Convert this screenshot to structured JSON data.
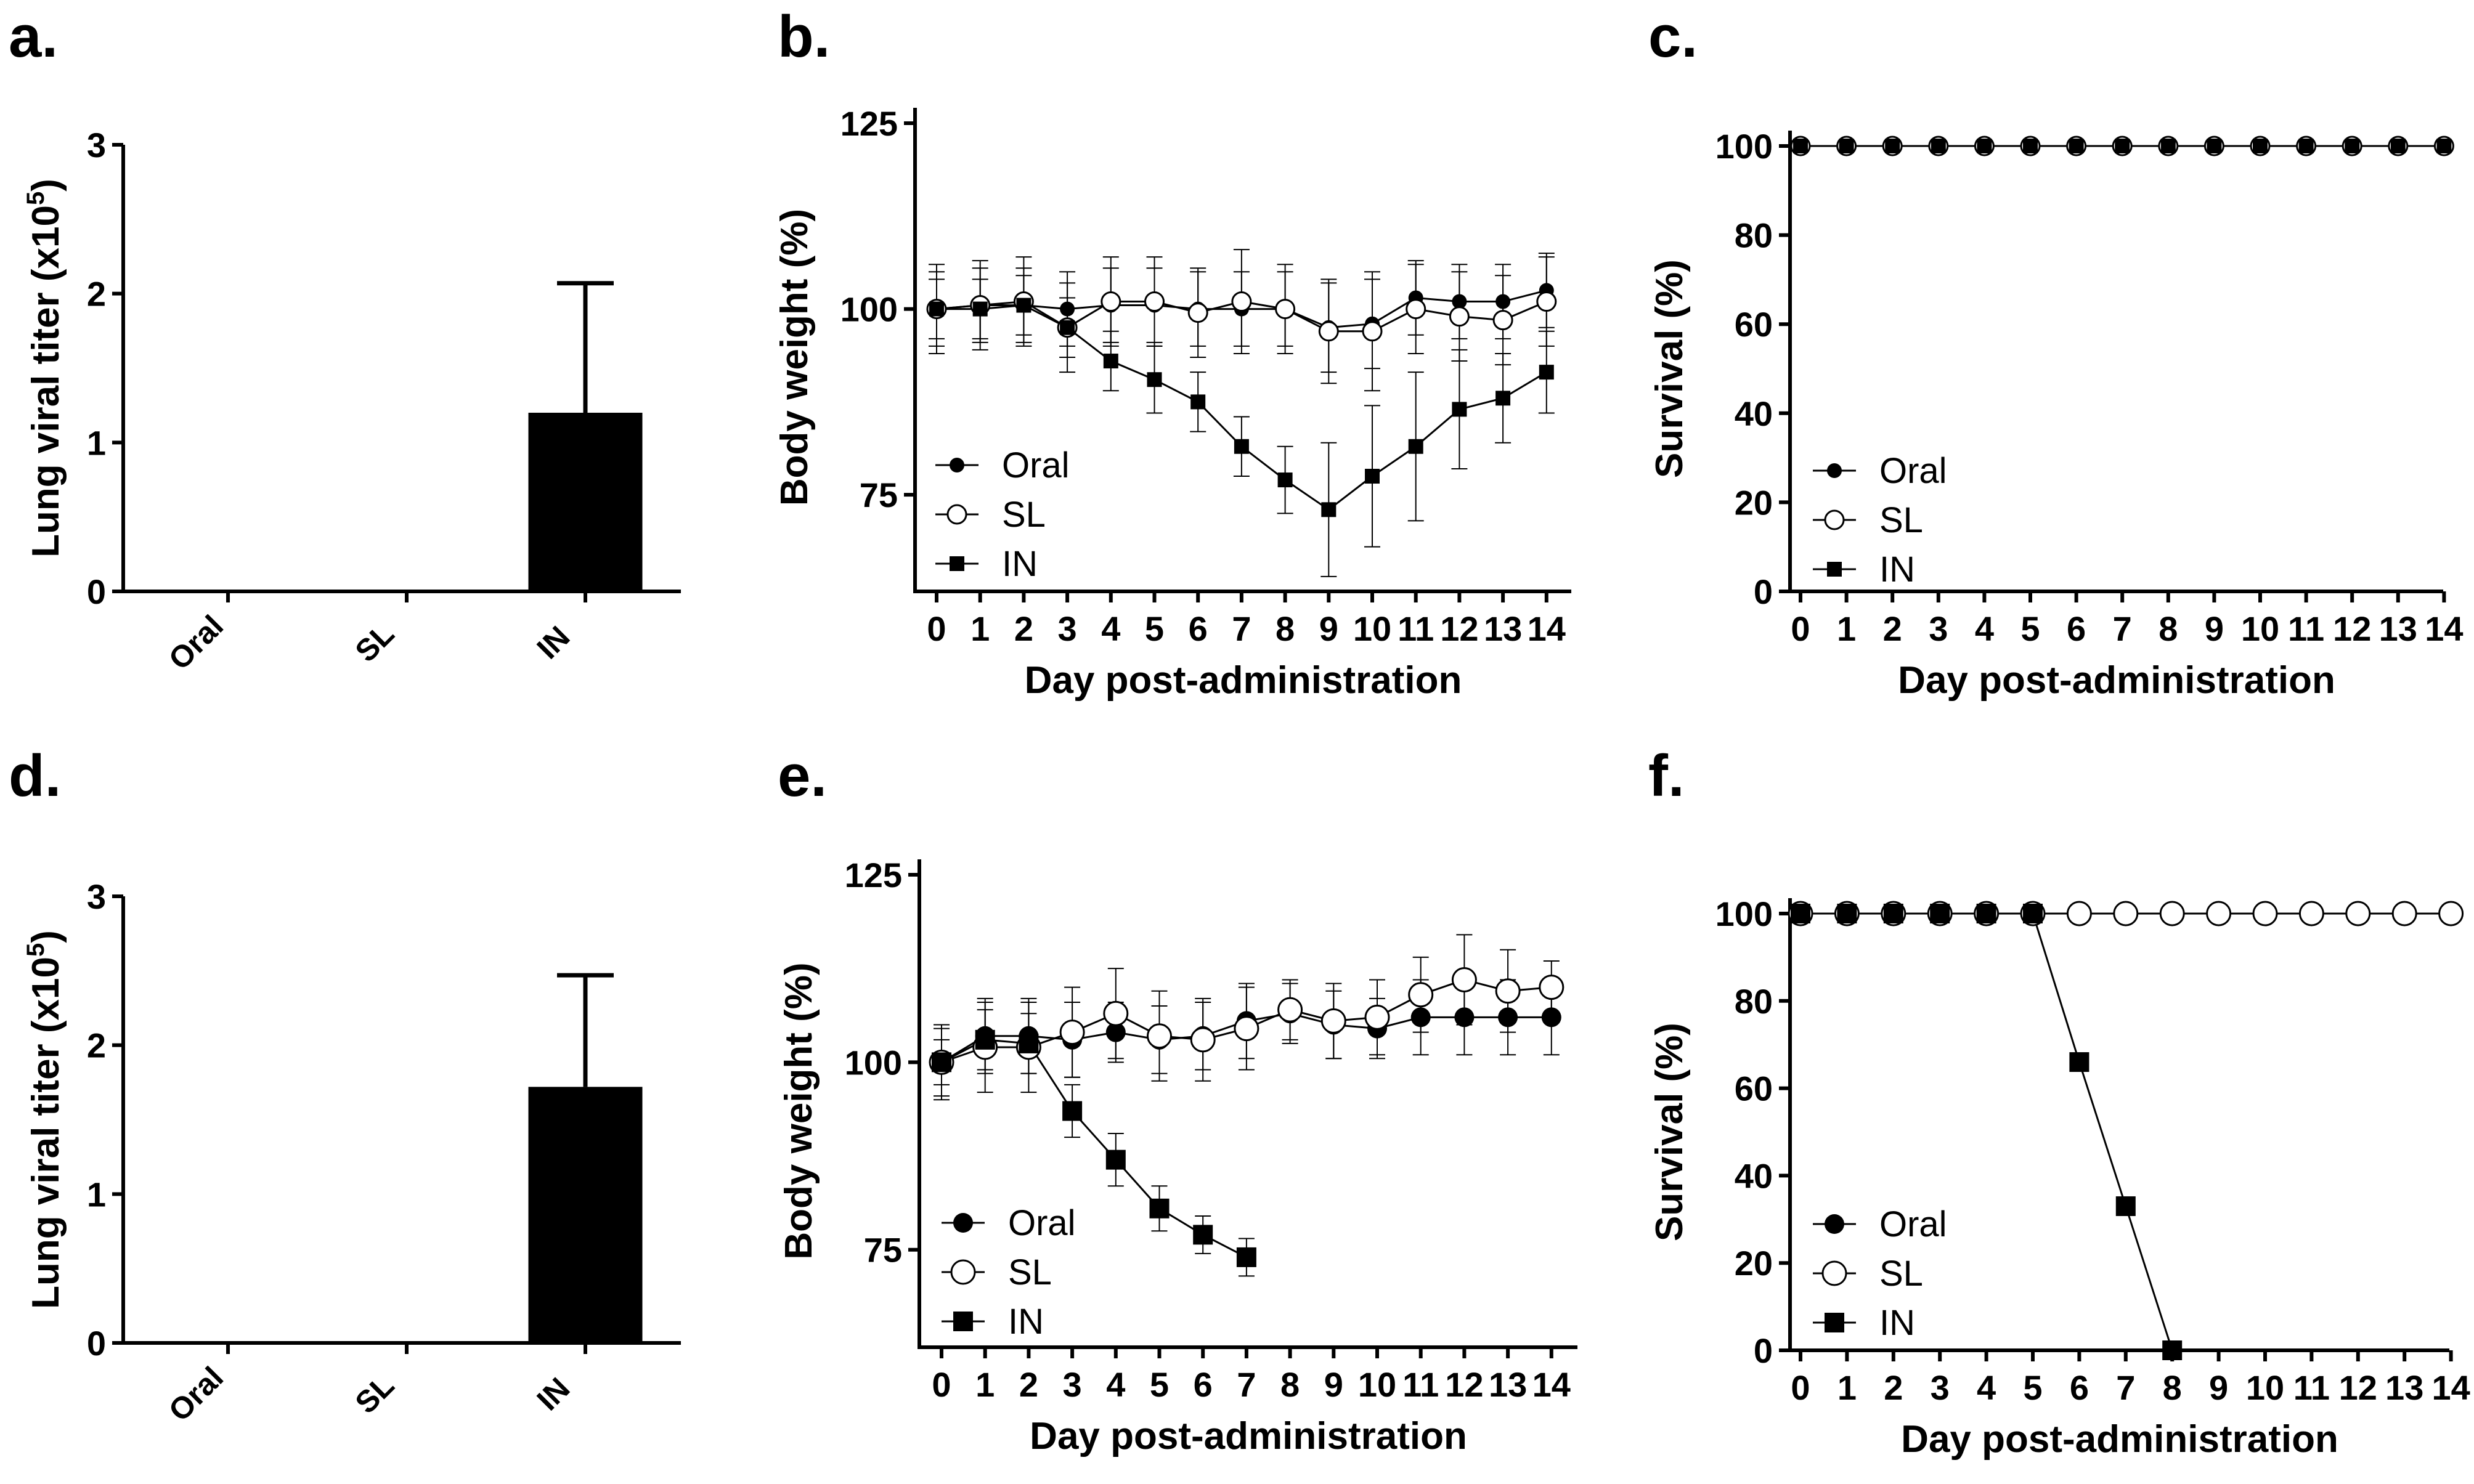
{
  "figure": {
    "panels": [
      "a.",
      "b.",
      "c.",
      "d.",
      "e.",
      "f."
    ]
  },
  "chart_data": [
    {
      "panel": "a.",
      "type": "bar",
      "title": "",
      "xlabel": "",
      "ylabel": "Lung viral titer (x10",
      "ylabel_sup": "5",
      "ylabel_end": ")",
      "categories": [
        "Oral",
        "SL",
        "IN"
      ],
      "values": [
        0,
        0,
        1.2
      ],
      "error": [
        0,
        0,
        0.87
      ],
      "ylim": [
        0,
        3
      ],
      "yticks": [
        "0",
        "1",
        "2",
        "3"
      ],
      "color": "#000000"
    },
    {
      "panel": "b.",
      "type": "line",
      "xlabel": "Day post-administration",
      "ylabel": "Body weight (%)",
      "x": [
        0,
        1,
        2,
        3,
        4,
        5,
        6,
        7,
        8,
        9,
        10,
        11,
        12,
        13,
        14
      ],
      "xticks": [
        "0",
        "1",
        "2",
        "3",
        "4",
        "5",
        "6",
        "7",
        "8",
        "9",
        "10",
        "11",
        "12",
        "13",
        "14"
      ],
      "ylim": [
        62,
        125
      ],
      "yticks": [
        "75",
        "100",
        "125"
      ],
      "legend": [
        "Oral",
        "SL",
        "IN"
      ],
      "series": [
        {
          "name": "Oral",
          "marker": "dot",
          "values": [
            100,
            100.5,
            100.5,
            100,
            100.5,
            100.5,
            100,
            100,
            100,
            97.5,
            98,
            101.5,
            101,
            101,
            102.5
          ],
          "err": [
            5,
            5,
            5,
            5,
            5,
            5,
            5,
            5,
            5,
            6,
            6,
            5,
            5,
            5,
            5
          ]
        },
        {
          "name": "SL",
          "marker": "open-circle",
          "values": [
            100,
            100.5,
            101,
            97.5,
            101,
            101,
            99.5,
            101,
            100,
            97,
            97,
            100,
            99,
            98.5,
            101
          ],
          "err": [
            6,
            6,
            6,
            6,
            6,
            6,
            6,
            7,
            6,
            7,
            8,
            6,
            6,
            6,
            6
          ]
        },
        {
          "name": "IN",
          "marker": "square",
          "values": [
            100,
            100,
            100.5,
            97.5,
            93,
            90.5,
            87.5,
            81.5,
            77,
            73,
            77.5,
            81.5,
            86.5,
            88,
            91.5
          ],
          "err": [
            4,
            4,
            4,
            4,
            4,
            4.5,
            4,
            4,
            4.5,
            9,
            9.5,
            10,
            8,
            6,
            5.5
          ]
        }
      ]
    },
    {
      "panel": "c.",
      "type": "line",
      "xlabel": "Day post-administration",
      "ylabel": "Survival (%)",
      "x": [
        0,
        1,
        2,
        3,
        4,
        5,
        6,
        7,
        8,
        9,
        10,
        11,
        12,
        13,
        14
      ],
      "xticks": [
        "0",
        "1",
        "2",
        "3",
        "4",
        "5",
        "6",
        "7",
        "8",
        "9",
        "10",
        "11",
        "12",
        "13",
        "14"
      ],
      "ylim": [
        0,
        100
      ],
      "yticks": [
        "0",
        "20",
        "40",
        "60",
        "80",
        "100"
      ],
      "legend": [
        "Oral",
        "SL",
        "IN"
      ],
      "series": [
        {
          "name": "Oral",
          "marker": "dot",
          "values": [
            100,
            100,
            100,
            100,
            100,
            100,
            100,
            100,
            100,
            100,
            100,
            100,
            100,
            100,
            100
          ]
        },
        {
          "name": "SL",
          "marker": "open-circle",
          "values": [
            100,
            100,
            100,
            100,
            100,
            100,
            100,
            100,
            100,
            100,
            100,
            100,
            100,
            100,
            100
          ]
        },
        {
          "name": "IN",
          "marker": "square",
          "values": [
            100,
            100,
            100,
            100,
            100,
            100,
            100,
            100,
            100,
            100,
            100,
            100,
            100,
            100,
            100
          ]
        }
      ]
    },
    {
      "panel": "d.",
      "type": "bar",
      "title": "",
      "xlabel": "",
      "ylabel": "Lung viral titer (x10",
      "ylabel_sup": "5",
      "ylabel_end": ")",
      "categories": [
        "Oral",
        "SL",
        "IN"
      ],
      "values": [
        0,
        0,
        1.72
      ],
      "error": [
        0,
        0,
        0.75
      ],
      "ylim": [
        0,
        3
      ],
      "yticks": [
        "0",
        "1",
        "2",
        "3"
      ],
      "color": "#000000"
    },
    {
      "panel": "e.",
      "type": "line",
      "xlabel": "Day post-administration",
      "ylabel": "Body weight (%)",
      "x": [
        0,
        1,
        2,
        3,
        4,
        5,
        6,
        7,
        8,
        9,
        10,
        11,
        12,
        13,
        14
      ],
      "xticks": [
        "0",
        "1",
        "2",
        "3",
        "4",
        "5",
        "6",
        "7",
        "8",
        "9",
        "10",
        "11",
        "12",
        "13",
        "14"
      ],
      "ylim": [
        62,
        125
      ],
      "yticks": [
        "75",
        "100",
        "125"
      ],
      "legend": [
        "Oral",
        "SL",
        "IN"
      ],
      "series": [
        {
          "name": "Oral",
          "marker": "dot",
          "values": [
            100,
            103.5,
            103.5,
            103,
            104,
            103,
            103.5,
            105.5,
            106.5,
            105,
            104.5,
            106,
            106,
            106,
            106
          ],
          "err": [
            4.5,
            5,
            5,
            5,
            4,
            4.5,
            4.5,
            5,
            4,
            4.5,
            4,
            5,
            5,
            5,
            5
          ]
        },
        {
          "name": "SL",
          "marker": "open-circle",
          "values": [
            100,
            102,
            102,
            104,
            106.5,
            103.5,
            103,
            104.5,
            107,
            105.5,
            106,
            109,
            111,
            109.5,
            110
          ],
          "err": [
            5,
            6,
            6,
            6,
            6,
            6,
            5.5,
            5.5,
            4,
            5,
            5,
            5,
            6,
            5.5,
            3.5
          ]
        },
        {
          "name": "IN",
          "marker": "square",
          "values": [
            100,
            103,
            102.5,
            93.5,
            87,
            80.5,
            77,
            74,
            null,
            null,
            null,
            null,
            null,
            null,
            null
          ],
          "err": [
            3,
            4,
            4,
            3.5,
            3.5,
            3,
            2.5,
            2.5,
            null,
            null,
            null,
            null,
            null,
            null,
            null
          ]
        }
      ]
    },
    {
      "panel": "f.",
      "type": "line",
      "xlabel": "Day post-administration",
      "ylabel": "Survival (%)",
      "x": [
        0,
        1,
        2,
        3,
        4,
        5,
        6,
        7,
        8,
        9,
        10,
        11,
        12,
        13,
        14
      ],
      "xticks": [
        "0",
        "1",
        "2",
        "3",
        "4",
        "5",
        "6",
        "7",
        "8",
        "9",
        "10",
        "11",
        "12",
        "13",
        "14"
      ],
      "ylim": [
        0,
        100
      ],
      "yticks": [
        "0",
        "20",
        "40",
        "60",
        "80",
        "100"
      ],
      "legend": [
        "Oral",
        "SL",
        "IN"
      ],
      "series": [
        {
          "name": "Oral",
          "marker": "dot",
          "values": [
            100,
            100,
            100,
            100,
            100,
            100,
            100,
            100,
            100,
            100,
            100,
            100,
            100,
            100,
            100
          ]
        },
        {
          "name": "SL",
          "marker": "open-circle",
          "values": [
            100,
            100,
            100,
            100,
            100,
            100,
            100,
            100,
            100,
            100,
            100,
            100,
            100,
            100,
            100
          ]
        },
        {
          "name": "IN",
          "marker": "square",
          "values": [
            100,
            100,
            100,
            100,
            100,
            100,
            66,
            33,
            0,
            null,
            null,
            null,
            null,
            null,
            null
          ]
        }
      ]
    }
  ]
}
